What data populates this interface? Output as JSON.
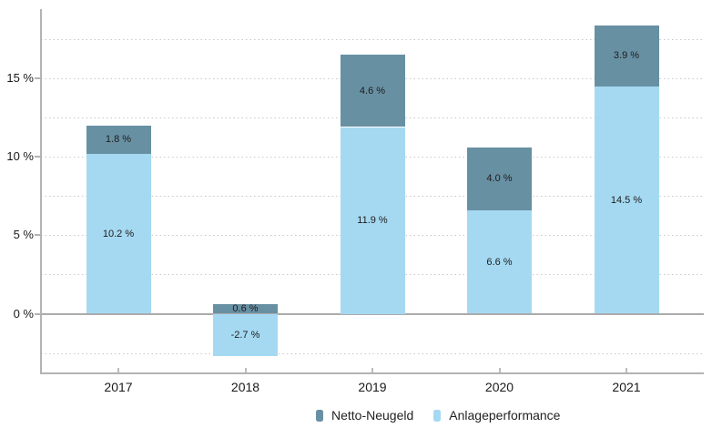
{
  "chart_data": {
    "type": "bar",
    "stacked": true,
    "title": "",
    "categories": [
      "2017",
      "2018",
      "2019",
      "2020",
      "2021"
    ],
    "series": [
      {
        "name": "Netto-Neugeld",
        "color": "#6890a3",
        "values": [
          1.8,
          0.6,
          4.6,
          4.0,
          3.9
        ]
      },
      {
        "name": "Anlageperformance",
        "color": "#a5d9f2",
        "values": [
          10.2,
          -2.7,
          11.9,
          6.6,
          14.5
        ]
      }
    ],
    "stack_order": [
      "Anlageperformance",
      "Netto-Neugeld"
    ],
    "segment_labels": {
      "Netto-Neugeld": [
        "1.8 %",
        "0.6 %",
        "4.6 %",
        "4.0 %",
        "3.9 %"
      ],
      "Anlageperformance": [
        "10.2 %",
        "-2.7 %",
        "11.9 %",
        "6.6 %",
        "14.5 %"
      ]
    },
    "value_suffix": " %",
    "value_decimals": 1,
    "y_ticks": [
      {
        "value": 0,
        "label": "0 %"
      },
      {
        "value": 5,
        "label": "5 %"
      },
      {
        "value": 10,
        "label": "10 %"
      },
      {
        "value": 15,
        "label": "15 %"
      }
    ],
    "gridlines": [
      -2.5,
      2.5,
      5,
      7.5,
      10,
      12.5,
      15,
      17.5
    ],
    "ylim": [
      -3.8,
      19.4
    ],
    "grid_style": "dotted",
    "legend_position": "bottom",
    "colors": {
      "axis": "#b3b3b3",
      "zero_line": "#ababab",
      "grid": "#c9c9c9",
      "text": "#1a1a1a"
    }
  }
}
